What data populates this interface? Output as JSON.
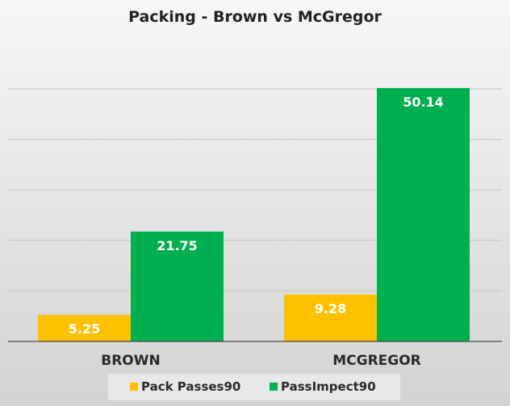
{
  "chart_data": {
    "type": "bar",
    "title": "Packing - Brown vs McGregor",
    "xlabel": "",
    "ylabel": "",
    "categories": [
      "BROWN",
      "MCGREGOR"
    ],
    "series": [
      {
        "name": "Pack Passes90",
        "values": [
          5.25,
          9.28
        ],
        "color": "#ffc000"
      },
      {
        "name": "PassImpect90",
        "values": [
          21.75,
          50.14
        ],
        "color": "#00b050"
      }
    ],
    "ylim": [
      0,
      50
    ],
    "gridlines": true,
    "legend_position": "bottom"
  }
}
